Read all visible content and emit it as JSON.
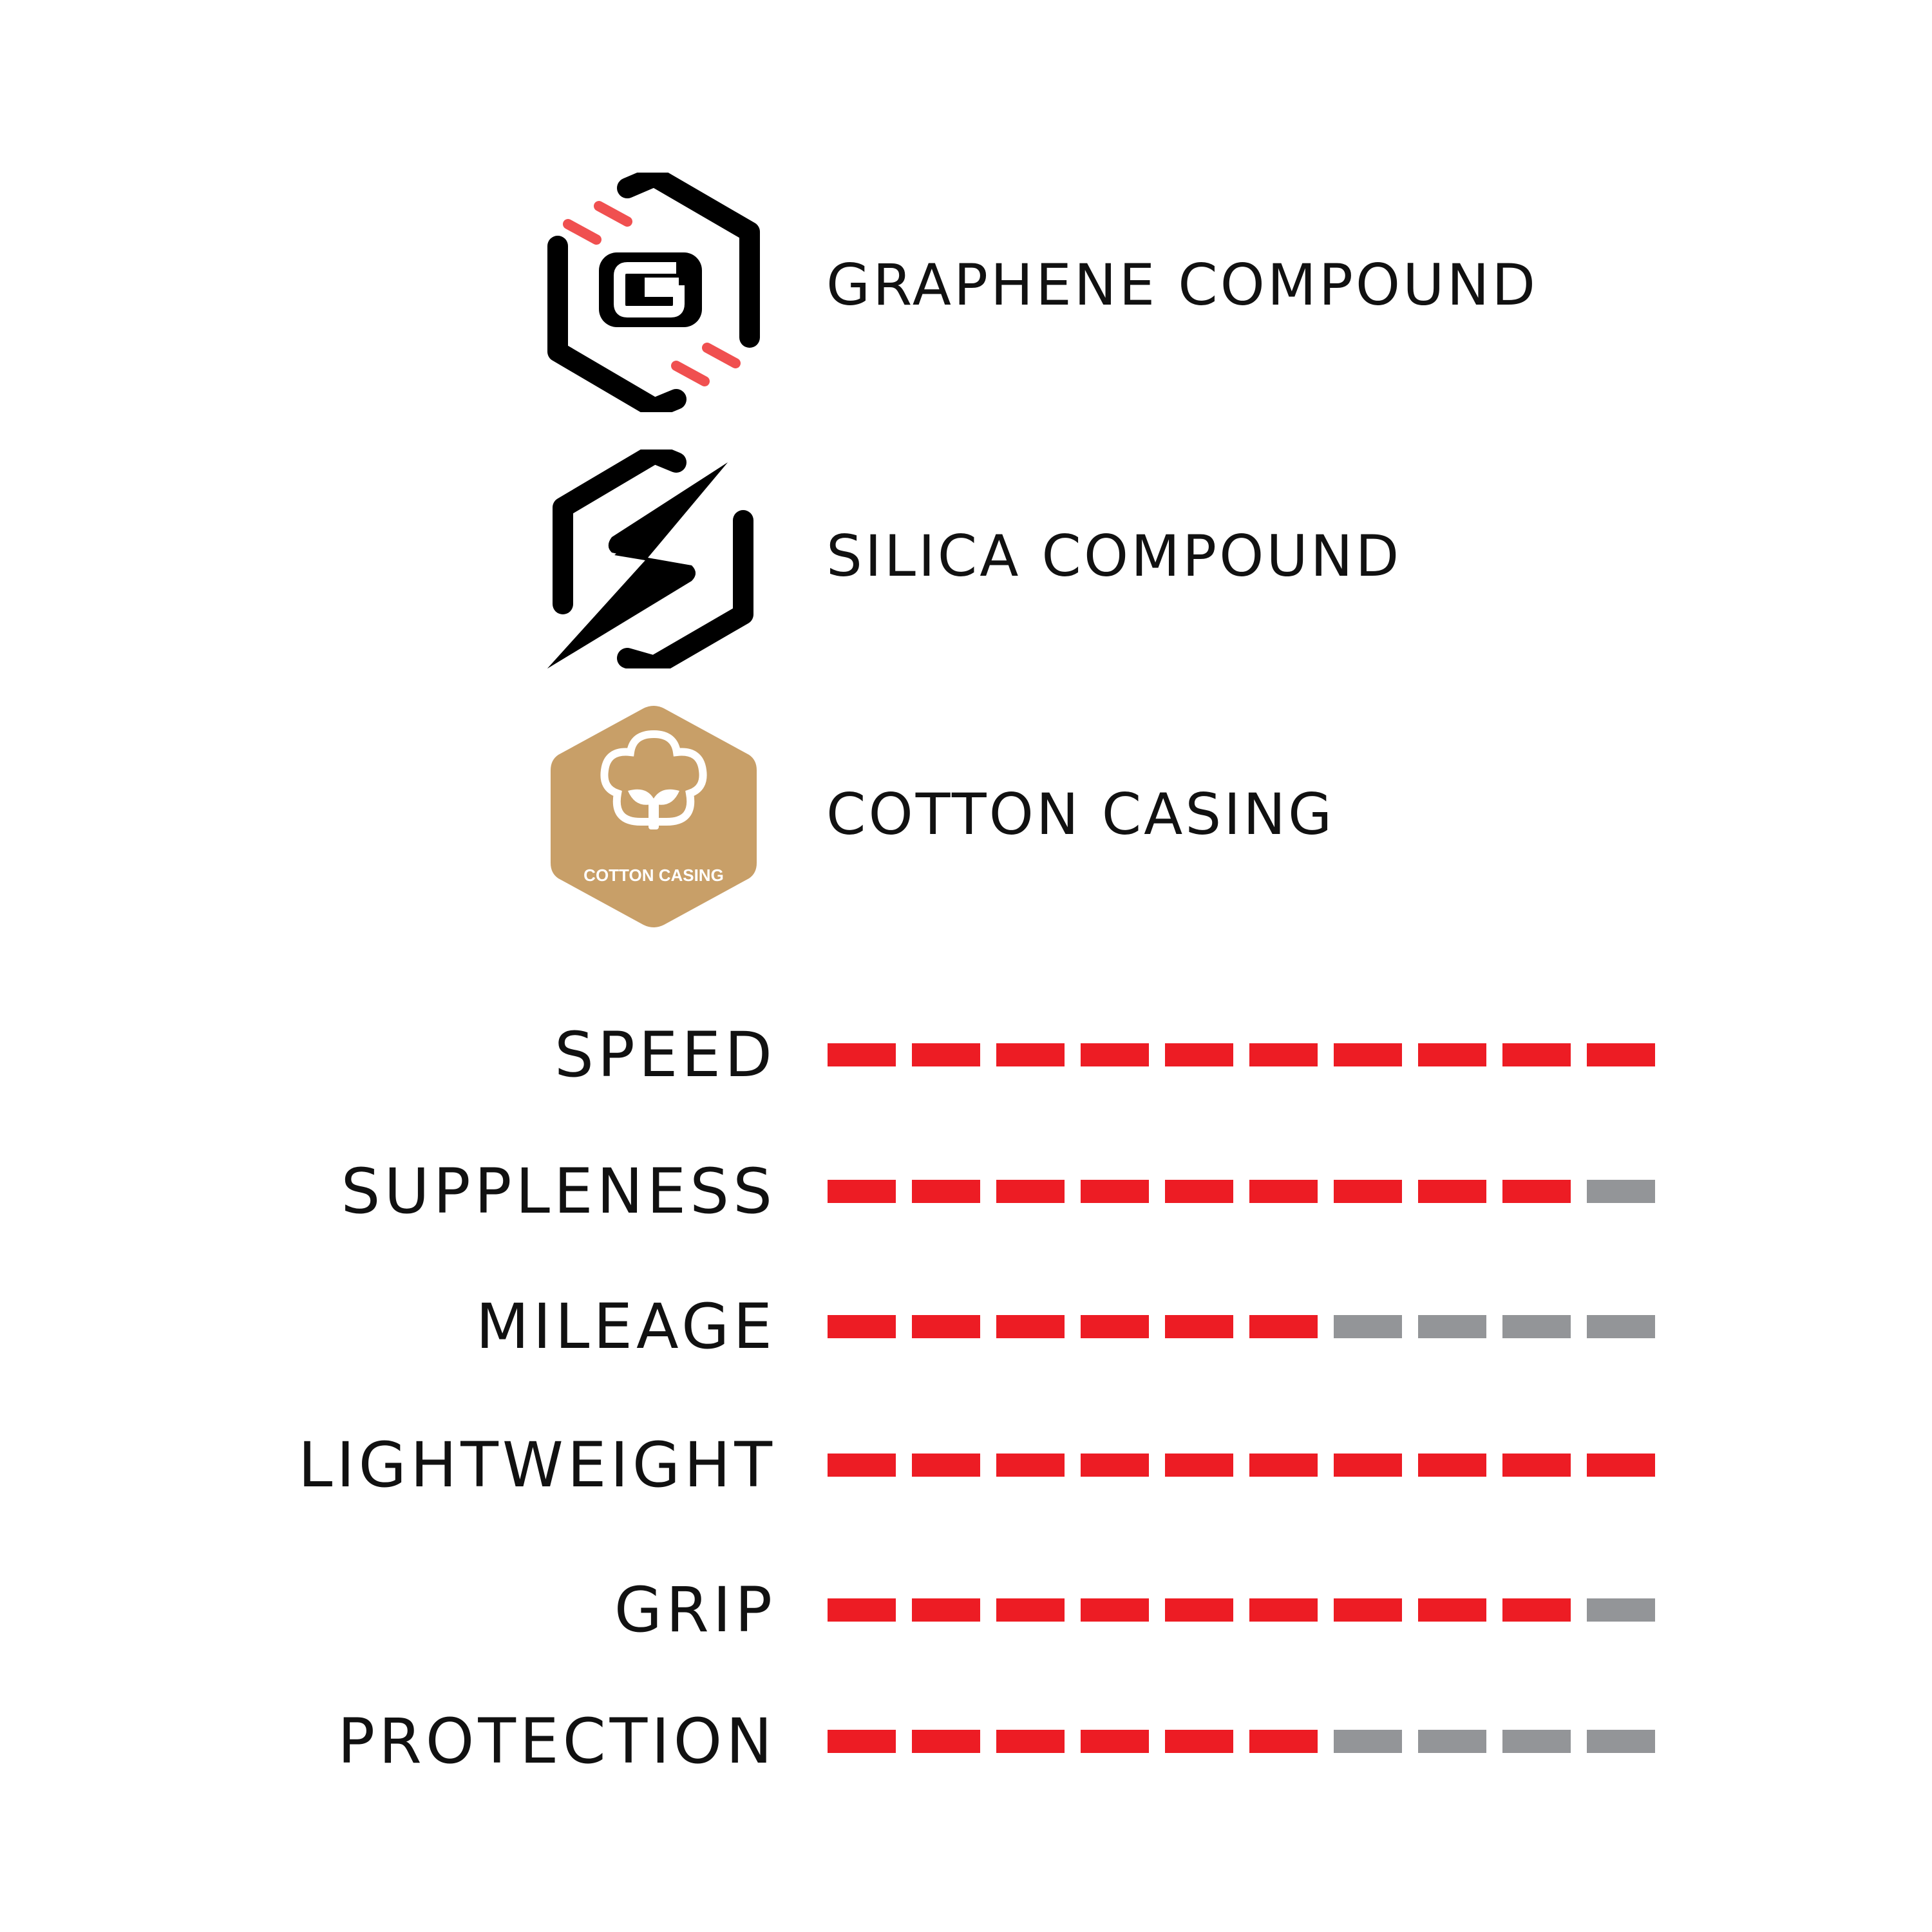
{
  "features": [
    {
      "label": "GRAPHENE COMPOUND",
      "icon": "graphene-hex-g-icon"
    },
    {
      "label": "SILICA COMPOUND",
      "icon": "silica-hex-bolt-icon"
    },
    {
      "label": "COTTON CASING",
      "icon": "cotton-casing-badge-icon",
      "badge_text": "COTTON CASING"
    }
  ],
  "rating_scale_max": 10,
  "ratings": [
    {
      "label": "SPEED",
      "value": 10
    },
    {
      "label": "SUPPLENESS",
      "value": 9
    },
    {
      "label": "MILEAGE",
      "value": 6
    },
    {
      "label": "LIGHTWEIGHT",
      "value": 10
    },
    {
      "label": "GRIP",
      "value": 9
    },
    {
      "label": "PROTECTION",
      "value": 6
    }
  ],
  "colors": {
    "filled": "#ED1C24",
    "empty": "#939598",
    "graphene_accent": "#F05050",
    "cotton": "#C89F68",
    "text": "#111111"
  }
}
